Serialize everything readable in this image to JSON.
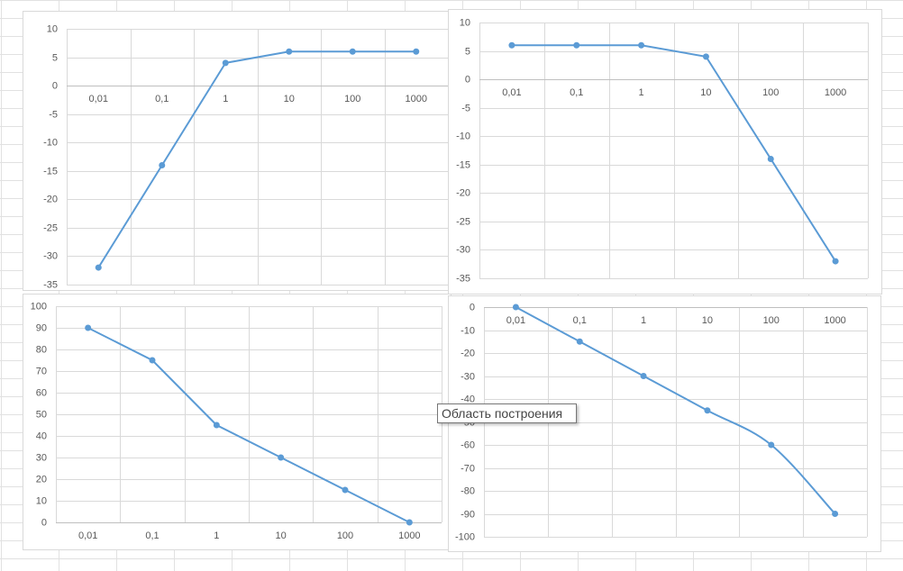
{
  "chart_data": [
    {
      "type": "line",
      "categories": [
        "0,01",
        "0,1",
        "1",
        "10",
        "100",
        "1000"
      ],
      "values": [
        -32,
        -14,
        4,
        6,
        6,
        6
      ],
      "color": "#5b9bd5",
      "ylim": [
        -35,
        10
      ],
      "yticks": [
        -35,
        -30,
        -25,
        -20,
        -15,
        -10,
        -5,
        0,
        5,
        10
      ],
      "grid": true,
      "smooth": false
    },
    {
      "type": "line",
      "categories": [
        "0,01",
        "0,1",
        "1",
        "10",
        "100",
        "1000"
      ],
      "values": [
        6,
        6,
        6,
        4,
        -14,
        -32
      ],
      "color": "#5b9bd5",
      "ylim": [
        -35,
        10
      ],
      "yticks": [
        -35,
        -30,
        -25,
        -20,
        -15,
        -10,
        -5,
        0,
        5,
        10
      ],
      "grid": true,
      "smooth": false
    },
    {
      "type": "line",
      "categories": [
        "0,01",
        "0,1",
        "1",
        "10",
        "100",
        "1000"
      ],
      "values": [
        90,
        75,
        45,
        30,
        15,
        0
      ],
      "color": "#5b9bd5",
      "ylim": [
        0,
        100
      ],
      "yticks": [
        0,
        10,
        20,
        30,
        40,
        50,
        60,
        70,
        80,
        90,
        100
      ],
      "grid": true,
      "smooth": false
    },
    {
      "type": "line",
      "categories": [
        "0,01",
        "0,1",
        "1",
        "10",
        "100",
        "1000"
      ],
      "values": [
        0,
        -15,
        -30,
        -45,
        -60,
        -90
      ],
      "color": "#5b9bd5",
      "ylim": [
        -100,
        0
      ],
      "yticks": [
        -100,
        -90,
        -80,
        -70,
        -60,
        -50,
        -40,
        -30,
        -20,
        -10,
        0
      ],
      "grid": true,
      "smooth": true
    }
  ],
  "tooltip": "Область построения"
}
